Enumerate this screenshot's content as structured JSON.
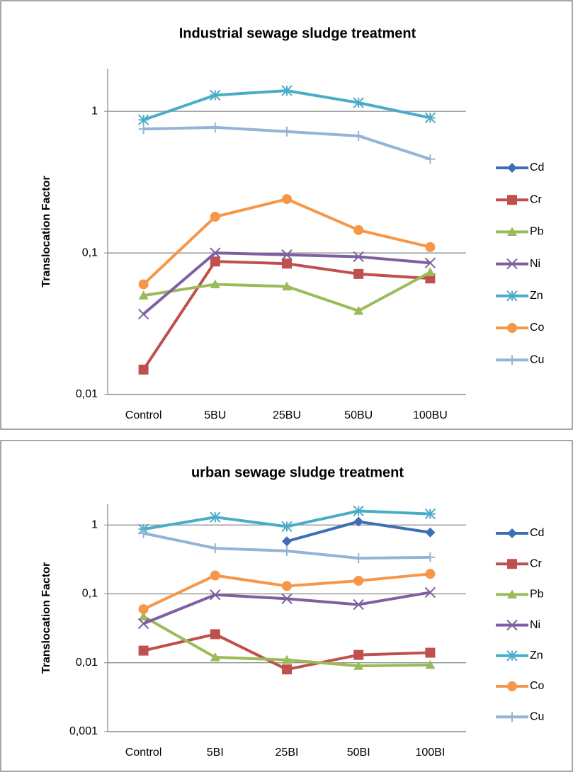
{
  "chart_data": [
    {
      "type": "line",
      "title": "Industrial sewage sludge treatment",
      "y_label": "Translocation Factor",
      "categories": [
        "Control",
        "5BU",
        "25BU",
        "50BU",
        "100BU"
      ],
      "log_y": true,
      "grid": true,
      "legend": "right",
      "ylim": [
        0.01,
        2
      ],
      "yticks": [
        {
          "value": 0.01,
          "label": "0,01"
        },
        {
          "value": 0.1,
          "label": "0,1"
        },
        1
      ],
      "series": [
        {
          "name": "Cd",
          "color": "#3c6fb4",
          "marker": "diamond",
          "values": [
            null,
            null,
            null,
            null,
            null
          ]
        },
        {
          "name": "Cr",
          "color": "#c0504d",
          "marker": "square",
          "values": [
            0.015,
            0.087,
            0.084,
            0.071,
            0.066
          ]
        },
        {
          "name": "Pb",
          "color": "#9bbb59",
          "marker": "triangle",
          "values": [
            0.05,
            0.06,
            0.058,
            0.039,
            0.073
          ]
        },
        {
          "name": "Ni",
          "color": "#7f5fa0",
          "marker": "x",
          "values": [
            0.037,
            0.1,
            0.097,
            0.094,
            0.085
          ]
        },
        {
          "name": "Zn",
          "color": "#4bacc6",
          "marker": "star",
          "values": [
            0.87,
            1.3,
            1.4,
            1.15,
            0.9
          ]
        },
        {
          "name": "Co",
          "color": "#f79646",
          "marker": "circle",
          "values": [
            0.06,
            0.18,
            0.24,
            0.145,
            0.11
          ]
        },
        {
          "name": "Cu",
          "color": "#95b3d7",
          "marker": "plus",
          "values": [
            0.75,
            0.77,
            0.72,
            0.67,
            0.46
          ]
        }
      ]
    },
    {
      "type": "line",
      "title": "urban sewage sludge treatment",
      "y_label": "Translocation Factor",
      "categories": [
        "Control",
        "5BI",
        "25BI",
        "50BI",
        "100BI"
      ],
      "log_y": true,
      "grid": true,
      "legend": "right",
      "ylim": [
        0.001,
        2
      ],
      "yticks": [
        {
          "value": 0.001,
          "label": "0,001"
        },
        {
          "value": 0.01,
          "label": "0,01"
        },
        {
          "value": 0.1,
          "label": "0,1"
        },
        1
      ],
      "series": [
        {
          "name": "Cd",
          "color": "#3c6fb4",
          "marker": "diamond",
          "values": [
            null,
            null,
            0.58,
            1.12,
            0.78
          ]
        },
        {
          "name": "Cr",
          "color": "#c0504d",
          "marker": "square",
          "values": [
            0.015,
            0.026,
            0.008,
            0.013,
            0.014
          ]
        },
        {
          "name": "Pb",
          "color": "#9bbb59",
          "marker": "triangle",
          "values": [
            0.047,
            0.012,
            0.011,
            0.009,
            0.0093
          ]
        },
        {
          "name": "Ni",
          "color": "#7f5fa0",
          "marker": "x",
          "values": [
            0.037,
            0.097,
            0.085,
            0.07,
            0.105
          ]
        },
        {
          "name": "Zn",
          "color": "#4bacc6",
          "marker": "star",
          "values": [
            0.87,
            1.3,
            0.95,
            1.6,
            1.45
          ]
        },
        {
          "name": "Co",
          "color": "#f79646",
          "marker": "circle",
          "values": [
            0.06,
            0.185,
            0.13,
            0.155,
            0.195
          ]
        },
        {
          "name": "Cu",
          "color": "#95b3d7",
          "marker": "plus",
          "values": [
            0.76,
            0.46,
            0.42,
            0.33,
            0.34
          ]
        }
      ]
    }
  ]
}
